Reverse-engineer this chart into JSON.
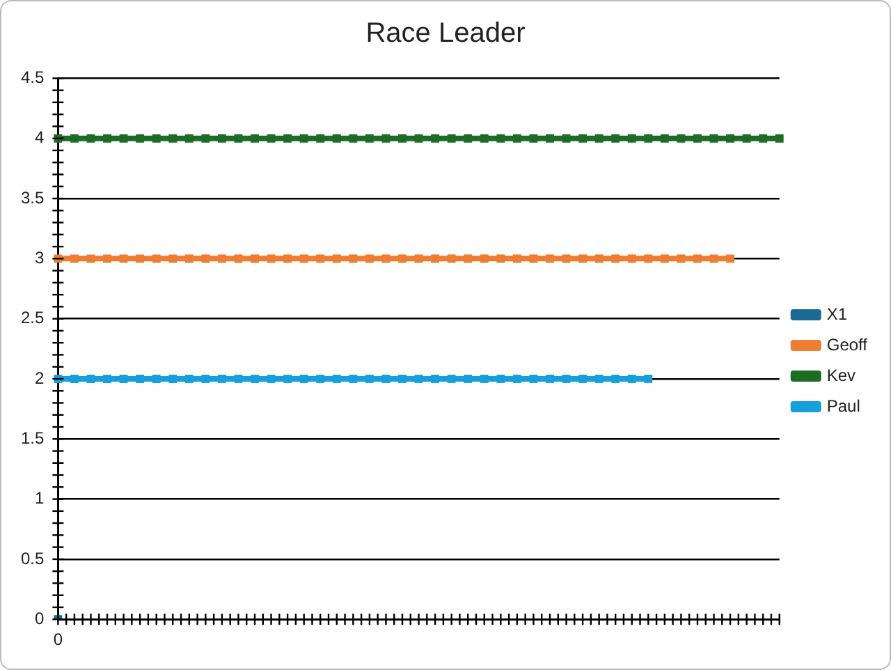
{
  "chart_data": {
    "type": "line",
    "title": "Race Leader",
    "categories": [
      "0",
      null,
      null,
      null,
      null,
      null,
      null,
      null,
      null,
      null,
      null,
      null,
      null,
      null,
      null,
      null,
      null,
      null,
      null,
      null,
      null,
      null,
      null,
      null,
      null,
      null,
      null,
      null,
      null,
      null,
      null,
      null,
      null,
      null,
      null,
      null,
      null,
      null,
      null,
      null,
      null,
      null,
      null,
      null,
      null
    ],
    "series": [
      {
        "name": "X1",
        "color": "#1b6a93",
        "values": [
          0,
          null,
          null,
          null,
          null,
          null,
          null,
          null,
          null,
          null,
          null,
          null,
          null,
          null,
          null,
          null,
          null,
          null,
          null,
          null,
          null,
          null,
          null,
          null,
          null,
          null,
          null,
          null,
          null,
          null,
          null,
          null,
          null,
          null,
          null,
          null,
          null,
          null,
          null,
          null,
          null,
          null,
          null,
          null,
          null
        ]
      },
      {
        "name": "Geoff",
        "color": "#ed7d31",
        "values": [
          3,
          3,
          3,
          3,
          3,
          3,
          3,
          3,
          3,
          3,
          3,
          3,
          3,
          3,
          3,
          3,
          3,
          3,
          3,
          3,
          3,
          3,
          3,
          3,
          3,
          3,
          3,
          3,
          3,
          3,
          3,
          3,
          3,
          3,
          3,
          3,
          3,
          3,
          3,
          3,
          3,
          3,
          null,
          null,
          null
        ]
      },
      {
        "name": "Kev",
        "color": "#1e6b24",
        "values": [
          4,
          4,
          4,
          4,
          4,
          4,
          4,
          4,
          4,
          4,
          4,
          4,
          4,
          4,
          4,
          4,
          4,
          4,
          4,
          4,
          4,
          4,
          4,
          4,
          4,
          4,
          4,
          4,
          4,
          4,
          4,
          4,
          4,
          4,
          4,
          4,
          4,
          4,
          4,
          4,
          4,
          4,
          4,
          4,
          4
        ]
      },
      {
        "name": "Paul",
        "color": "#16a0db",
        "values": [
          2,
          2,
          2,
          2,
          2,
          2,
          2,
          2,
          2,
          2,
          2,
          2,
          2,
          2,
          2,
          2,
          2,
          2,
          2,
          2,
          2,
          2,
          2,
          2,
          2,
          2,
          2,
          2,
          2,
          2,
          2,
          2,
          2,
          2,
          2,
          2,
          2,
          null,
          null,
          null,
          null,
          null,
          null,
          null,
          null
        ]
      }
    ],
    "ylim": [
      0,
      4.5
    ],
    "yticks": [
      0,
      0.5,
      1,
      1.5,
      2,
      2.5,
      3,
      3.5,
      4,
      4.5
    ],
    "grid": "y",
    "legend": "right",
    "marker": "square",
    "line_style": "solid"
  }
}
